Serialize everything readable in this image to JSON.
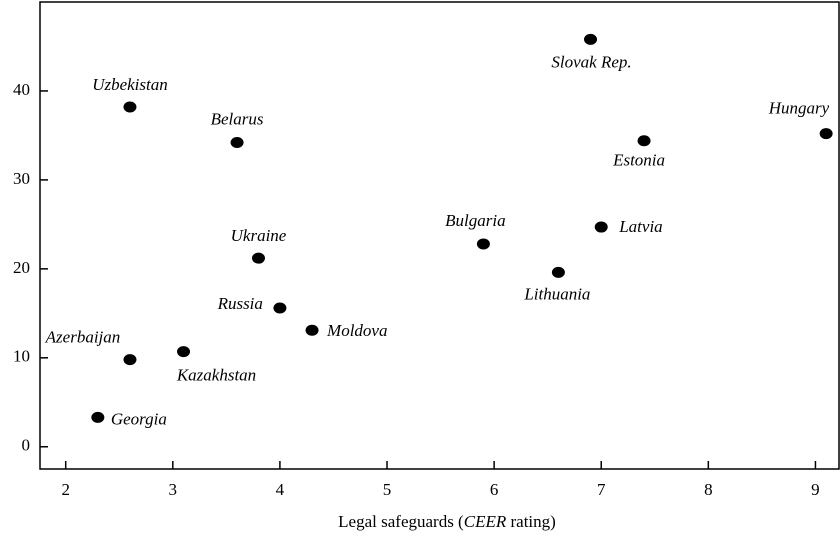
{
  "chart_data": {
    "type": "scatter",
    "x_label": [
      "Legal safeguards (",
      "CEER",
      " rating)"
    ],
    "labels": [
      "Uzbekistan",
      "Belarus",
      "Slovak Rep.",
      "Hungary",
      "Estonia",
      "Bulgaria",
      "Latvia",
      "Lithuania",
      "Ukraine",
      "Russia",
      "Moldova",
      "Azerbaijan",
      "Kazakhstan",
      "Georgia"
    ],
    "x": [
      2.6,
      3.6,
      6.9,
      9.1,
      7.4,
      5.9,
      7.0,
      6.6,
      3.8,
      4.0,
      4.3,
      2.6,
      3.1,
      2.3
    ],
    "values": [
      38.2,
      34.2,
      45.8,
      35.2,
      34.4,
      22.8,
      24.7,
      19.6,
      21.2,
      15.6,
      13.1,
      9.8,
      10.7,
      3.3
    ],
    "color": "#000000",
    "xlim": [
      1.76,
      9.22
    ],
    "ylim": [
      -2.5,
      50
    ],
    "xticks": [
      2,
      3,
      4,
      5,
      6,
      7,
      8,
      9
    ],
    "yticks": [
      0,
      10,
      20,
      30,
      40
    ]
  }
}
